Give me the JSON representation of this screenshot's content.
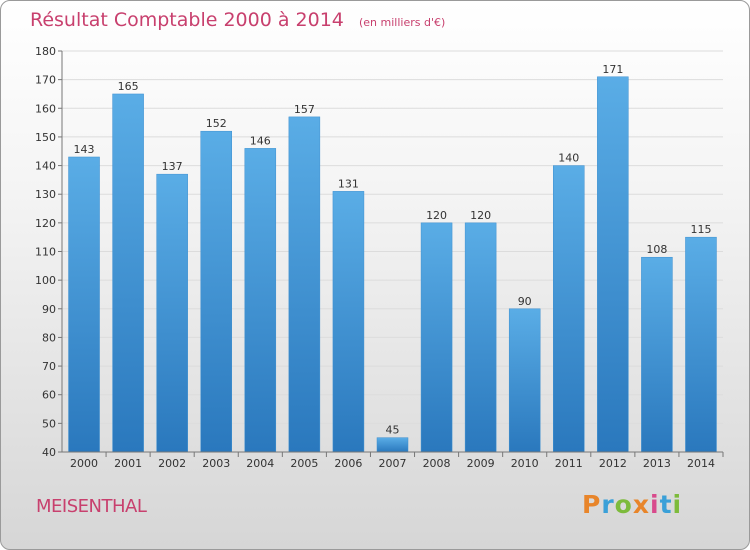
{
  "chart_data": {
    "type": "bar",
    "title": "Résultat Comptable 2000 à 2014",
    "unit": "(en milliers d'€)",
    "categories": [
      "2000",
      "2001",
      "2002",
      "2003",
      "2004",
      "2005",
      "2006",
      "2007",
      "2008",
      "2009",
      "2010",
      "2011",
      "2012",
      "2013",
      "2014"
    ],
    "values": [
      143,
      165,
      137,
      152,
      146,
      157,
      131,
      45,
      120,
      120,
      90,
      140,
      171,
      108,
      115
    ],
    "ylim": [
      40,
      180
    ],
    "yticks": [
      40,
      50,
      60,
      70,
      80,
      90,
      100,
      110,
      120,
      130,
      140,
      150,
      160,
      170,
      180
    ],
    "grid": true,
    "bar_color": "#4f9fdc"
  },
  "footer": {
    "town": "MEISENTHAL",
    "logo": "Proxiti",
    "logo_colors": [
      "#e8852a",
      "#3aa0d8",
      "#7dbb3c",
      "#e8852a",
      "#d84a8c",
      "#3aa0d8",
      "#7dbb3c"
    ]
  }
}
